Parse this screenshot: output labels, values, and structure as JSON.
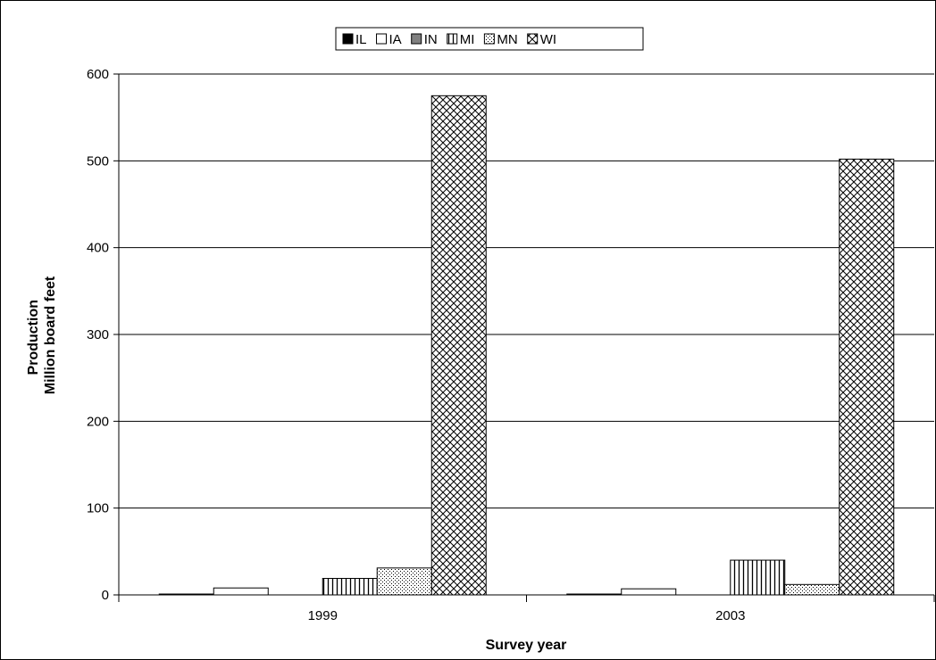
{
  "chart_data": {
    "type": "bar",
    "categories": [
      "1999",
      "2003"
    ],
    "series": [
      {
        "name": "IL",
        "values": [
          1,
          1
        ],
        "fill": "#000000"
      },
      {
        "name": "IA",
        "values": [
          8,
          7
        ],
        "fill": "#ffffff"
      },
      {
        "name": "IN",
        "values": [
          0,
          0
        ],
        "fill": "#808080"
      },
      {
        "name": "MI",
        "values": [
          19,
          40
        ],
        "fill": "pattern-vertical-lines"
      },
      {
        "name": "MN",
        "values": [
          31,
          12
        ],
        "fill": "pattern-dots"
      },
      {
        "name": "WI",
        "values": [
          575,
          502
        ],
        "fill": "pattern-crosshatch"
      }
    ],
    "title": "",
    "xlabel": "Survey year",
    "ylabel_line1": "Production",
    "ylabel_line2": "Million board feet",
    "ylim": [
      0,
      600
    ],
    "yticks": [
      0,
      100,
      200,
      300,
      400,
      500,
      600
    ],
    "grid": true,
    "legend_position": "top-center"
  }
}
